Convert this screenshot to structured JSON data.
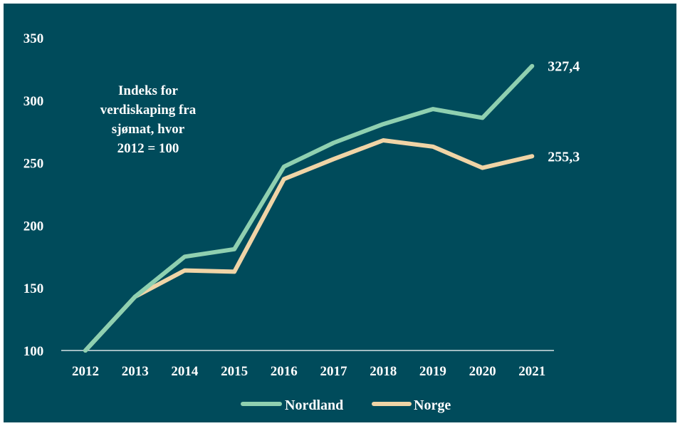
{
  "colors": {
    "background": "#004b5b",
    "nordland": "#8fd0b0",
    "norge": "#f0d4a6",
    "text": "#ffffff"
  },
  "annotation": [
    "Indeks for",
    "verdiskaping fra",
    "sjømat, hvor",
    "2012 = 100"
  ],
  "chart_data": {
    "type": "line",
    "categories": [
      "2012",
      "2013",
      "2014",
      "2015",
      "2016",
      "2017",
      "2018",
      "2019",
      "2020",
      "2021"
    ],
    "series": [
      {
        "name": "Nordland",
        "values": [
          100,
          143,
          175,
          181,
          247,
          266,
          281,
          293,
          286,
          327.4
        ],
        "end_label": "327,4"
      },
      {
        "name": "Norge",
        "values": [
          100,
          143,
          164,
          163,
          237,
          253,
          268,
          263,
          246,
          255.3
        ],
        "end_label": "255,3"
      }
    ],
    "ylim": [
      100,
      350
    ],
    "yticks": [
      "100",
      "150",
      "200",
      "250",
      "300",
      "350"
    ],
    "xlabel": "",
    "ylabel": "",
    "grid": false,
    "legend": "bottom"
  }
}
